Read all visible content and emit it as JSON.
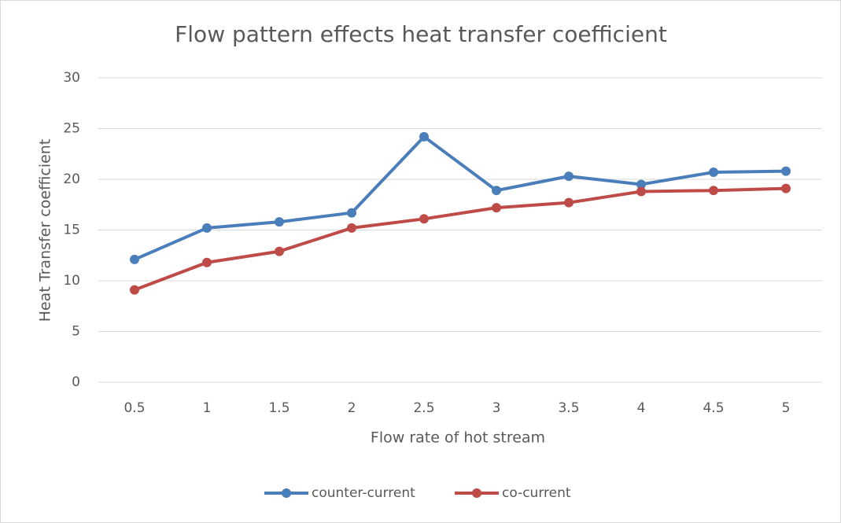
{
  "chart_data": {
    "type": "line",
    "title": "Flow pattern effects heat transfer coefficient",
    "x_label": "Flow rate of hot stream",
    "y_label": "Heat Transfer coefficient",
    "categories": [
      "0.5",
      "1",
      "1.5",
      "2",
      "2.5",
      "3",
      "3.5",
      "4",
      "4.5",
      "5"
    ],
    "series": [
      {
        "name": "counter-current",
        "color": "#4a7ebb",
        "values": [
          12.1,
          15.2,
          15.8,
          16.7,
          24.2,
          18.9,
          20.3,
          19.5,
          20.7,
          20.8
        ]
      },
      {
        "name": "co-current",
        "color": "#be4b48",
        "values": [
          9.1,
          11.8,
          12.9,
          15.2,
          16.1,
          17.2,
          17.7,
          18.8,
          18.9,
          19.1
        ]
      }
    ],
    "ylim": [
      0,
      30
    ],
    "yticks": [
      0,
      5,
      10,
      15,
      20,
      25,
      30
    ],
    "grid": true,
    "legend": "bottom"
  }
}
